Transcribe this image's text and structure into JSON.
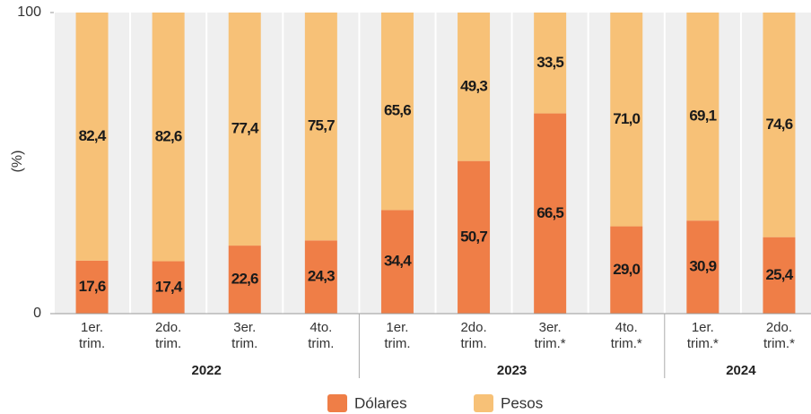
{
  "chart_data": {
    "type": "stacked_bar",
    "y_label": "(%)",
    "groups": [
      {
        "name": "2022",
        "categories": [
          [
            "1er.",
            "trim."
          ],
          [
            "2do.",
            "trim."
          ],
          [
            "3er.",
            "trim."
          ],
          [
            "4to.",
            "trim."
          ]
        ]
      },
      {
        "name": "2023",
        "categories": [
          [
            "1er.",
            "trim."
          ],
          [
            "2do.",
            "trim."
          ],
          [
            "3er.",
            "trim.*"
          ],
          [
            "4to.",
            "trim.*"
          ]
        ]
      },
      {
        "name": "2024",
        "categories": [
          [
            "1er.",
            "trim.*"
          ],
          [
            "2do.",
            "trim.*"
          ]
        ]
      }
    ],
    "series": [
      {
        "name": "Dólares",
        "color": "#ef7e47",
        "values": [
          17.6,
          17.4,
          22.6,
          24.3,
          34.4,
          50.7,
          66.5,
          29.0,
          30.9,
          25.4
        ],
        "value_labels": [
          "17,6",
          "17,4",
          "22,6",
          "24,3",
          "34,4",
          "50,7",
          "66,5",
          "29,0",
          "30,9",
          "25,4"
        ]
      },
      {
        "name": "Pesos",
        "color": "#f7c177",
        "values": [
          82.4,
          82.6,
          77.4,
          75.7,
          65.6,
          49.3,
          33.5,
          71.0,
          69.1,
          74.6
        ],
        "value_labels": [
          "82,4",
          "82,6",
          "77,4",
          "75,7",
          "65,6",
          "49,3",
          "33,5",
          "71,0",
          "69,1",
          "74,6"
        ]
      }
    ],
    "ylim": [
      0,
      100
    ],
    "yticks": [
      0,
      100
    ]
  }
}
